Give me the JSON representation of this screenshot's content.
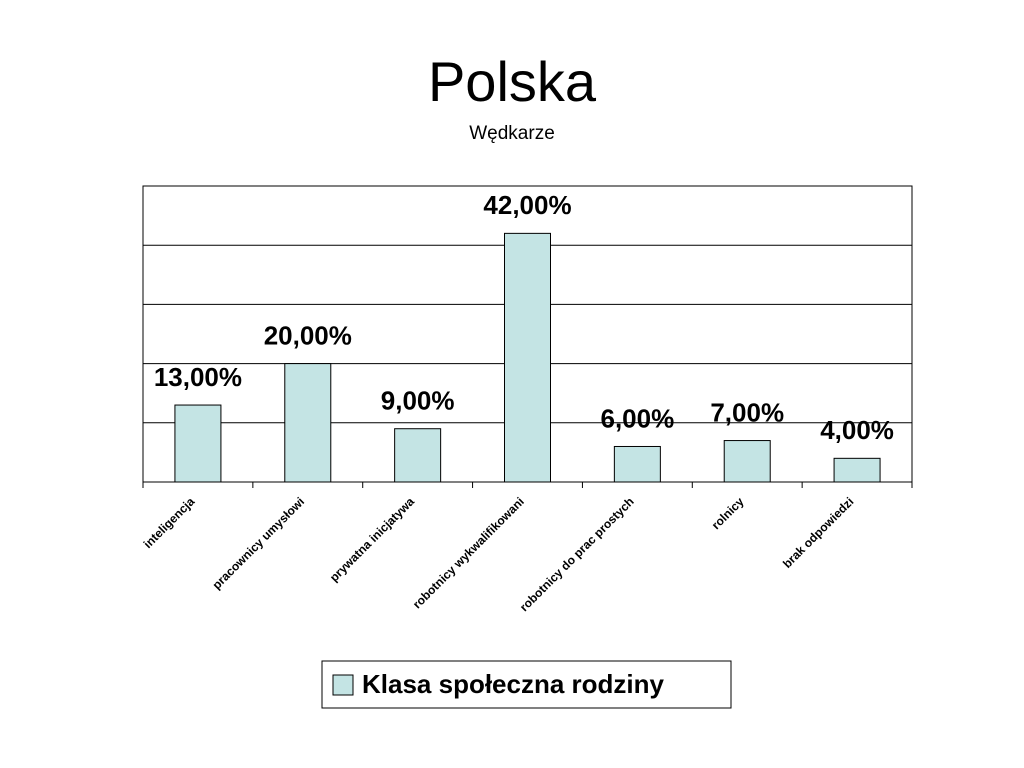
{
  "chart_data": {
    "type": "bar",
    "title": "Polska",
    "subtitle": "Wędkarze",
    "categories": [
      "inteligencja",
      "pracownicy umysłowi",
      "prywatna inicjatywa",
      "robotnicy wykwalifikowani",
      "robotnicy do prac prostych",
      "rolnicy",
      "brak odpowiedzi"
    ],
    "series": [
      {
        "name": "Klasa społeczna rodziny",
        "color": "#c4e4e4",
        "values": [
          13,
          20,
          9,
          42,
          6,
          7,
          4
        ],
        "value_labels": [
          "13,00%",
          "20,00%",
          "9,00%",
          "42,00%",
          "6,00%",
          "7,00%",
          "4,00%"
        ]
      }
    ],
    "ylim": [
      0,
      50
    ],
    "yticks": [
      0,
      10,
      20,
      30,
      40,
      50
    ],
    "grid": true,
    "legend": "bottom"
  }
}
